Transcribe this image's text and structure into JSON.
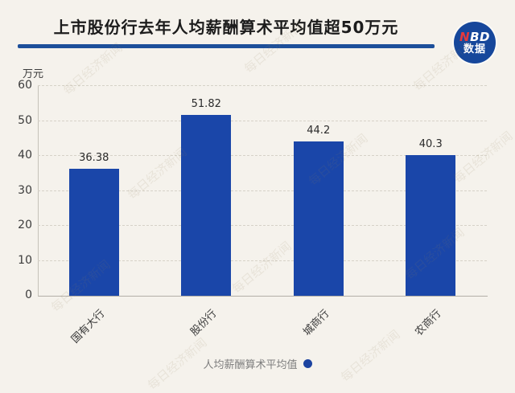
{
  "title": "上市股份行去年人均薪酬算术平均值超50万元",
  "logo": {
    "n": "N",
    "bd": "BD",
    "line2": "数据"
  },
  "watermark": "每日经济新闻",
  "colors": {
    "background": "#f5f2ec",
    "bar": "#1a46a9",
    "title_rule": "#1d4f9a",
    "logo_circle": "#16479b",
    "logo_accent": "#e5383b",
    "legend_dot": "#1c43a0"
  },
  "chart_data": {
    "type": "bar",
    "title": "上市股份行去年人均薪酬算术平均值超50万元",
    "unit_label": "万元",
    "categories": [
      "国有大行",
      "股份行",
      "城商行",
      "农商行"
    ],
    "values": [
      36.38,
      51.82,
      44.2,
      40.3
    ],
    "value_labels": [
      "36.38",
      "51.82",
      "44.2",
      "40.3"
    ],
    "ylim": [
      0,
      60
    ],
    "yticks": [
      0,
      10,
      20,
      30,
      40,
      50,
      60
    ],
    "grid": "horizontal-dashed",
    "legend": {
      "label": "人均薪酬算术平均值",
      "position": "bottom"
    }
  }
}
